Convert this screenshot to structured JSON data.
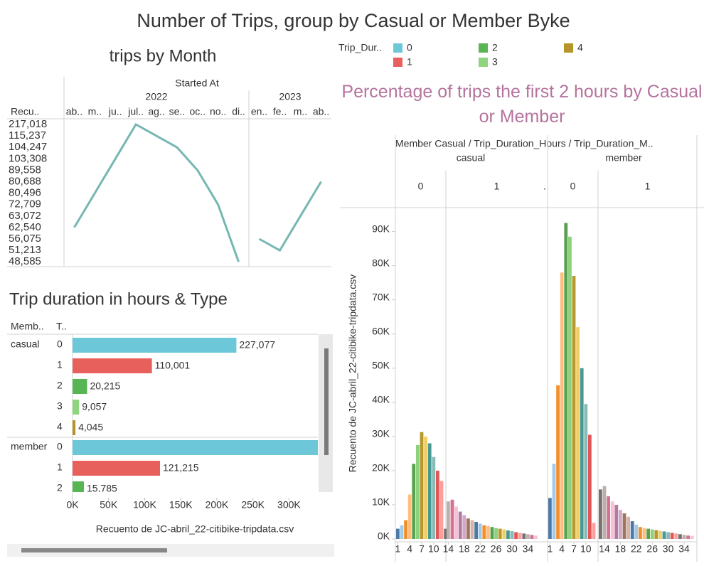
{
  "title": "Number of Trips, group by Casual or Member Byke",
  "legend": {
    "title": "Trip_Dur..",
    "items": [
      {
        "label": "0",
        "color": "#6cc8d9"
      },
      {
        "label": "1",
        "color": "#e8605c"
      },
      {
        "label": "2",
        "color": "#57b553"
      },
      {
        "label": "3",
        "color": "#8fd480"
      },
      {
        "label": "4",
        "color": "#b5952a"
      }
    ]
  },
  "chart_data": [
    {
      "type": "line",
      "title": "trips by Month",
      "x_title": "Started At",
      "y_title": "Recu..",
      "color": "#76b7b2",
      "yticks": [
        {
          "value": 217018,
          "label": "217,018"
        },
        {
          "value": 115237,
          "label": "115,237"
        },
        {
          "value": 104247,
          "label": "104,247"
        },
        {
          "value": 103308,
          "label": "103,308"
        },
        {
          "value": 89558,
          "label": "89,558"
        },
        {
          "value": 80688,
          "label": "80,688"
        },
        {
          "value": 80496,
          "label": "80,496"
        },
        {
          "value": 72709,
          "label": "72,709"
        },
        {
          "value": 63072,
          "label": "63,072"
        },
        {
          "value": 62540,
          "label": "62,540"
        },
        {
          "value": 56075,
          "label": "56,075"
        },
        {
          "value": 51213,
          "label": "51,213"
        },
        {
          "value": 48585,
          "label": "48,585"
        }
      ],
      "panels": [
        {
          "label": "2022",
          "categories": [
            "ab..",
            "m..",
            "ju..",
            "jul..",
            "ag..",
            "se..",
            "oc..",
            "no..",
            "di.."
          ],
          "values": [
            62540,
            80496,
            103308,
            217018,
            115237,
            104247,
            89558,
            72709,
            48585
          ]
        },
        {
          "label": "2023",
          "categories": [
            "en..",
            "fe..",
            "m..",
            "ab.."
          ],
          "values": [
            56075,
            51213,
            63072,
            80688
          ]
        }
      ]
    },
    {
      "type": "bar",
      "orientation": "horizontal",
      "title": "Trip duration in hours & Type",
      "row_headers": [
        "Memb..",
        "T.."
      ],
      "x_title": "Recuento de JC-abril_22-citibike-tripdata.csv",
      "xlim": [
        0,
        340000
      ],
      "xticks": [
        {
          "value": 0,
          "label": "0K"
        },
        {
          "value": 50000,
          "label": "50K"
        },
        {
          "value": 100000,
          "label": "100K"
        },
        {
          "value": 150000,
          "label": "150K"
        },
        {
          "value": 200000,
          "label": "200K"
        },
        {
          "value": 250000,
          "label": "250K"
        },
        {
          "value": 300000,
          "label": "300K"
        }
      ],
      "groups": [
        {
          "label": "casual",
          "categories": [
            "0",
            "1",
            "2",
            "3",
            "4"
          ],
          "values": [
            227077,
            110001,
            20215,
            9057,
            4045
          ],
          "value_labels": [
            "227,077",
            "110,001",
            "20,215",
            "9,057",
            "4,045"
          ]
        },
        {
          "label": "member",
          "categories": [
            "0",
            "1",
            "2"
          ],
          "values": [
            340000,
            121215,
            15785
          ],
          "value_labels": [
            null,
            "121,215",
            "15,785"
          ]
        }
      ]
    },
    {
      "type": "bar",
      "orientation": "vertical",
      "title": "Percentage of trips the first 2 hours by Casual or Member",
      "header": "Member Casual / Trip_Duration_Hours / Trip_Duration_M..",
      "hidden_label": ".",
      "y_title": "Recuento de JC-abril_22-citibike-tripdata.csv",
      "ylim": [
        0,
        97000
      ],
      "yticks": [
        {
          "value": 0,
          "label": "0K"
        },
        {
          "value": 10000,
          "label": "10K"
        },
        {
          "value": 20000,
          "label": "20K"
        },
        {
          "value": 30000,
          "label": "30K"
        },
        {
          "value": 40000,
          "label": "40K"
        },
        {
          "value": 50000,
          "label": "50K"
        },
        {
          "value": 60000,
          "label": "60K"
        },
        {
          "value": 70000,
          "label": "70K"
        },
        {
          "value": 80000,
          "label": "80K"
        },
        {
          "value": 90000,
          "label": "90K"
        }
      ],
      "xticks": [
        1,
        4,
        7,
        10,
        14,
        18,
        22,
        26,
        30,
        34
      ],
      "colors": [
        "#4e79a7",
        "#a0cbe8",
        "#f28e2b",
        "#ffbe7d",
        "#59a14f",
        "#8cd17d",
        "#b6992d",
        "#f1ce63",
        "#499894",
        "#86bcb6",
        "#e15759",
        "#ff9d9a",
        "#79706e",
        "#bab0ac",
        "#d37295",
        "#fabfd2",
        "#b07aa1",
        "#d4a6c8",
        "#9d7660",
        "#d7b5a6"
      ],
      "panels": [
        {
          "label": "casual",
          "hours": [
            {
              "label": "0",
              "values": [
                3000,
                4000,
                5500,
                13000,
                22000,
                27500,
                31300,
                30000,
                28000,
                24000,
                20000,
                17000,
                3000
              ]
            },
            {
              "label": "1",
              "values": [
                11000,
                11500,
                9500,
                8000,
                7000,
                6000,
                5500,
                5000,
                4500,
                4000,
                3800,
                3500,
                3200,
                3000,
                2800,
                2500,
                2300,
                2000,
                1800,
                1600,
                1400,
                1200,
                1000
              ]
            }
          ]
        },
        {
          "label": "member",
          "hours": [
            {
              "label": "0",
              "values": [
                12000,
                22000,
                45000,
                78000,
                92500,
                88500,
                77000,
                62000,
                50000,
                39500,
                30500,
                4700
              ]
            },
            {
              "label": "1",
              "values": [
                14500,
                15500,
                12500,
                11000,
                10000,
                8500,
                7500,
                6500,
                5200,
                4200,
                3500,
                3200,
                3000,
                2800,
                2600,
                2400,
                2200,
                2000,
                1800,
                1600,
                1400,
                1200,
                1000,
                900
              ]
            }
          ]
        }
      ]
    }
  ]
}
